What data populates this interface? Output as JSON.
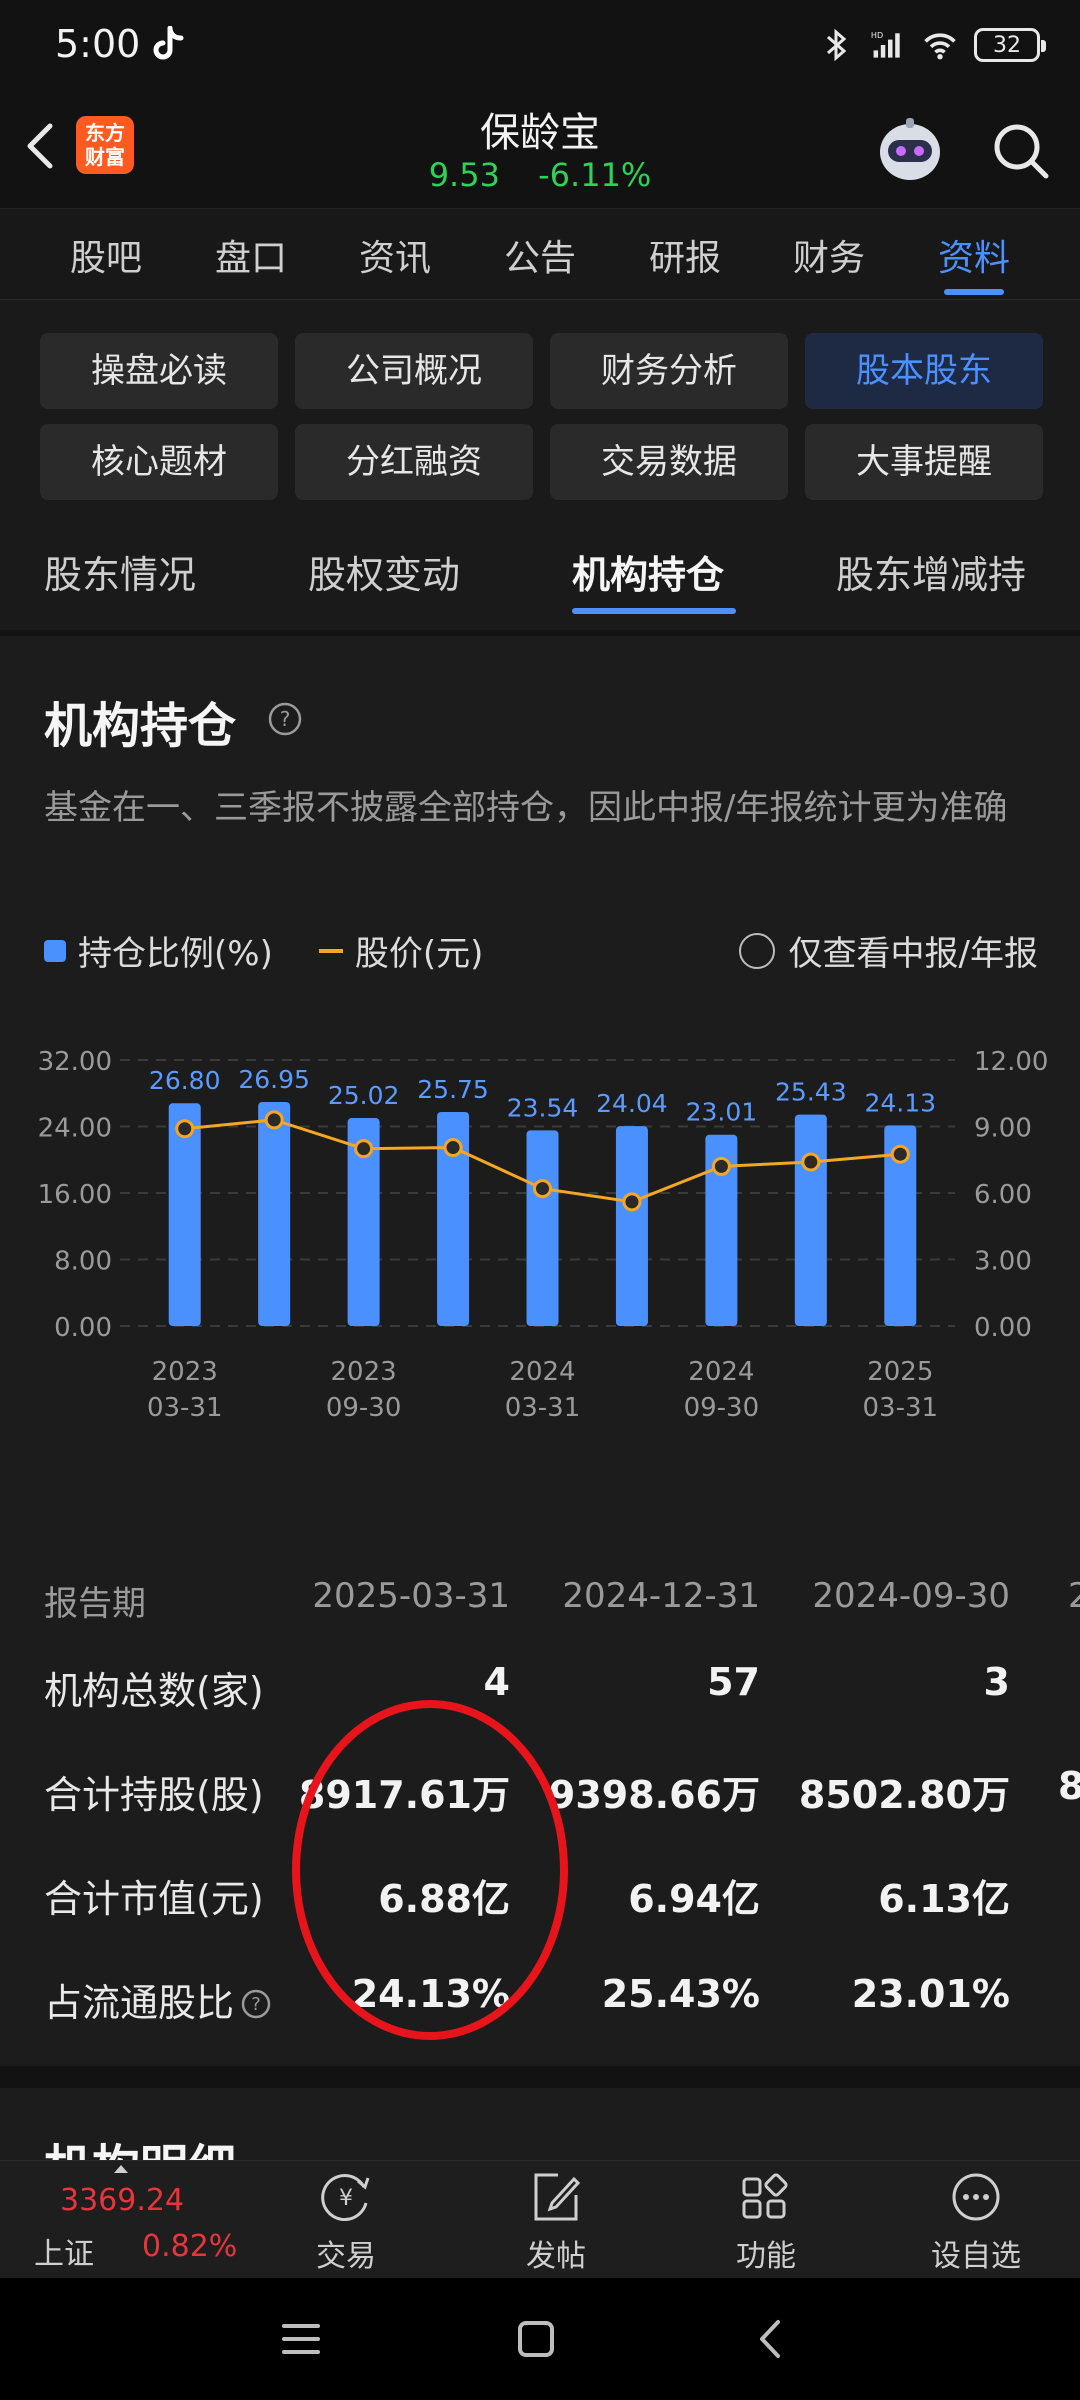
{
  "status_bar": {
    "time": "5:00",
    "battery": "32"
  },
  "header": {
    "logo_text": "东方财富",
    "stock_name": "保龄宝",
    "price": "9.53",
    "change_pct": "-6.11%"
  },
  "main_tabs": [
    "股吧",
    "盘口",
    "资讯",
    "公告",
    "研报",
    "财务",
    "资料"
  ],
  "grid_buttons": [
    "操盘必读",
    "公司概况",
    "财务分析",
    "股本股东",
    "核心题材",
    "分红融资",
    "交易数据",
    "大事提醒"
  ],
  "sub_tabs": [
    "股东情况",
    "股权变动",
    "机构持仓",
    "股东增减持"
  ],
  "section": {
    "title": "机构持仓",
    "note": "基金在一、三季报不披露全部持仓，因此中报/年报统计更为准确"
  },
  "legend": {
    "bar_label": "持仓比例(%)",
    "line_label": "股价(元)",
    "toggle_label": "仅查看中报/年报"
  },
  "chart_data": {
    "type": "bar",
    "categories": [
      "2023-03-31",
      "2023-06-30",
      "2023-09-30",
      "2023-12-31",
      "2024-03-31",
      "2024-06-30",
      "2024-09-30",
      "2024-12-31",
      "2025-03-31"
    ],
    "series": [
      {
        "name": "持仓比例(%)",
        "type": "bar",
        "axis": "left",
        "color": "#4a90ff",
        "values": [
          26.8,
          26.95,
          25.02,
          25.75,
          23.54,
          24.04,
          23.01,
          25.43,
          24.13
        ]
      },
      {
        "name": "股价(元)",
        "type": "line",
        "axis": "right",
        "color": "#f5a623",
        "values": [
          8.9,
          9.3,
          8.0,
          8.05,
          6.2,
          5.6,
          7.2,
          7.4,
          7.75
        ]
      }
    ],
    "y_left": {
      "ticks": [
        "32.00",
        "24.00",
        "16.00",
        "8.00",
        "0.00"
      ],
      "range": [
        0,
        32
      ]
    },
    "y_right": {
      "ticks": [
        "12.00",
        "9.00",
        "6.00",
        "3.00",
        "0.00"
      ],
      "range": [
        0,
        12
      ]
    },
    "x_tick_labels": [
      {
        "year": "2023",
        "date": "03-31"
      },
      {
        "year": "2023",
        "date": "09-30"
      },
      {
        "year": "2024",
        "date": "03-31"
      },
      {
        "year": "2024",
        "date": "09-30"
      },
      {
        "year": "2025",
        "date": "03-31"
      }
    ],
    "grid": true
  },
  "table": {
    "header": {
      "label": "报告期",
      "periods": [
        "2025-03-31",
        "2024-12-31",
        "2024-09-30",
        "2"
      ]
    },
    "rows": [
      {
        "label": "机构总数(家)",
        "values": [
          "4",
          "57",
          "3",
          ""
        ]
      },
      {
        "label": "合计持股(股)",
        "values": [
          "8917.61万",
          "9398.66万",
          "8502.80万",
          "8"
        ]
      },
      {
        "label": "合计市值(元)",
        "values": [
          "6.88亿",
          "6.94亿",
          "6.13亿",
          ""
        ]
      },
      {
        "label": "占流通股比",
        "values": [
          "24.13%",
          "25.43%",
          "23.01%",
          ""
        ]
      }
    ]
  },
  "next_section_title": "机构明细",
  "bottom_nav": {
    "index_value": "3369.24",
    "index_name": "上证",
    "index_pct": "0.82%",
    "items": [
      "交易",
      "发帖",
      "功能",
      "设自选"
    ]
  }
}
